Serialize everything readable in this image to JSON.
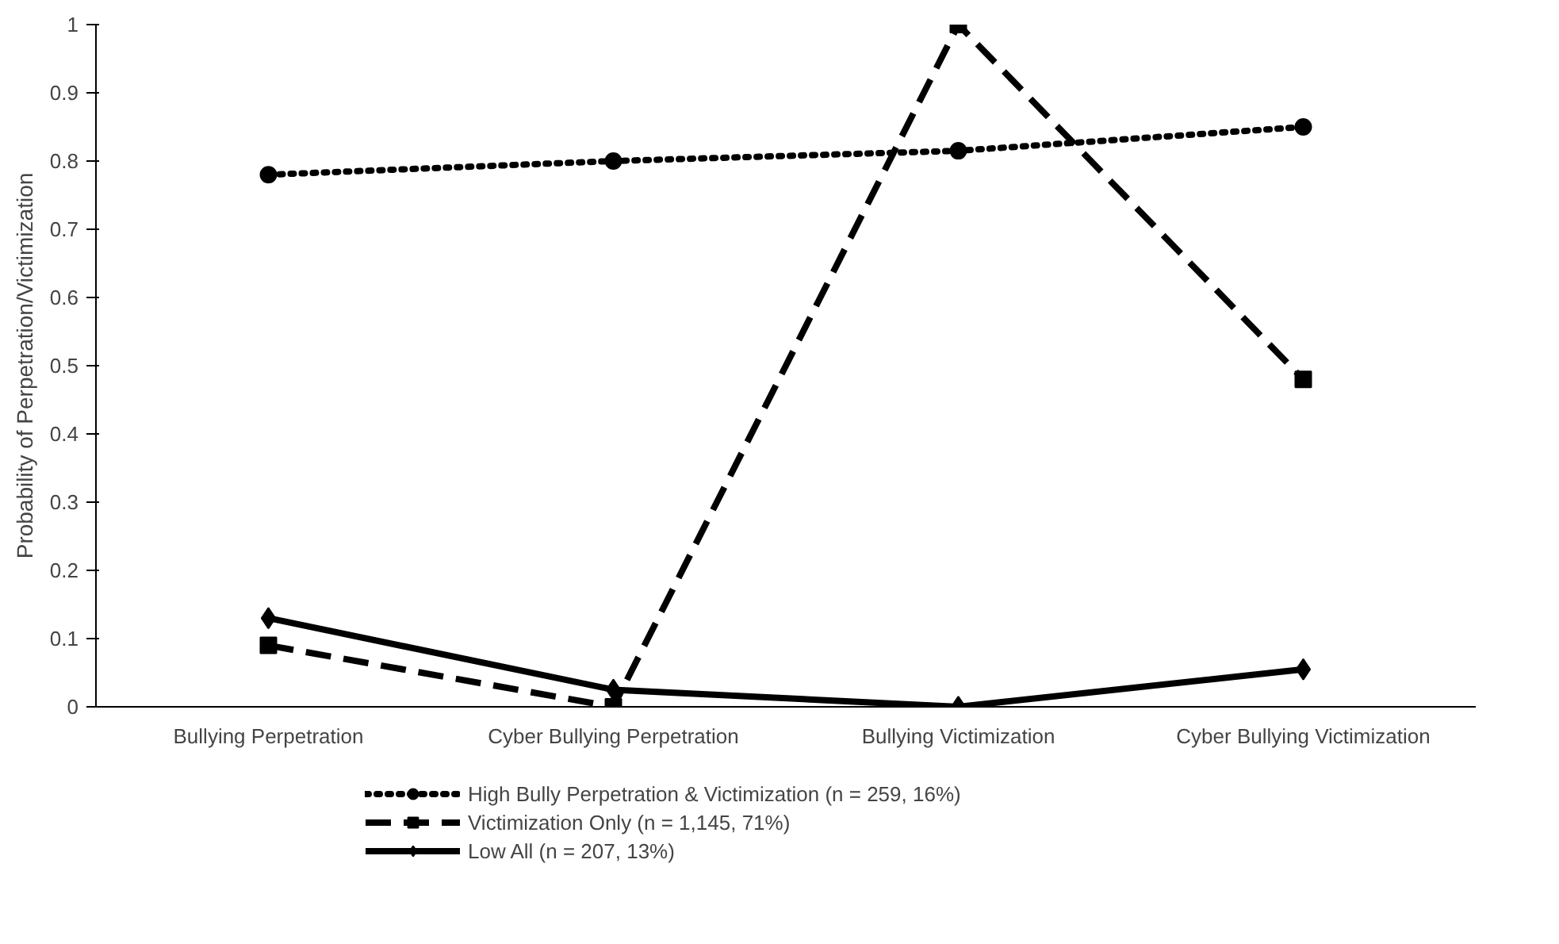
{
  "chart_data": {
    "type": "line",
    "ylabel": "Probability of Perpetration/Victimization",
    "categories": [
      "Bullying Perpetration",
      "Cyber Bullying Perpetration",
      "Bullying Victimization",
      "Cyber Bullying Victimization"
    ],
    "series": [
      {
        "name": "High Bully Perpetration & Victimization (n = 259, 16%)",
        "color": "#000000",
        "values": [
          0.78,
          0.8,
          0.815,
          0.85
        ],
        "marker": "circle",
        "line_style": "dotted"
      },
      {
        "name": "Victimization Only (n = 1,145, 71%)",
        "color": "#000000",
        "values": [
          0.09,
          0.0,
          1.0,
          0.48
        ],
        "marker": "square",
        "line_style": "dashed"
      },
      {
        "name": "Low All (n = 207, 13%)",
        "color": "#000000",
        "values": [
          0.13,
          0.025,
          0.0,
          0.055
        ],
        "marker": "diamond",
        "line_style": "solid"
      }
    ],
    "ylim": [
      0,
      1
    ],
    "yticks": [
      0,
      0.1,
      0.2,
      0.3,
      0.4,
      0.5,
      0.6,
      0.7,
      0.8,
      0.9,
      1
    ],
    "grid": false,
    "legend": "bottom"
  }
}
